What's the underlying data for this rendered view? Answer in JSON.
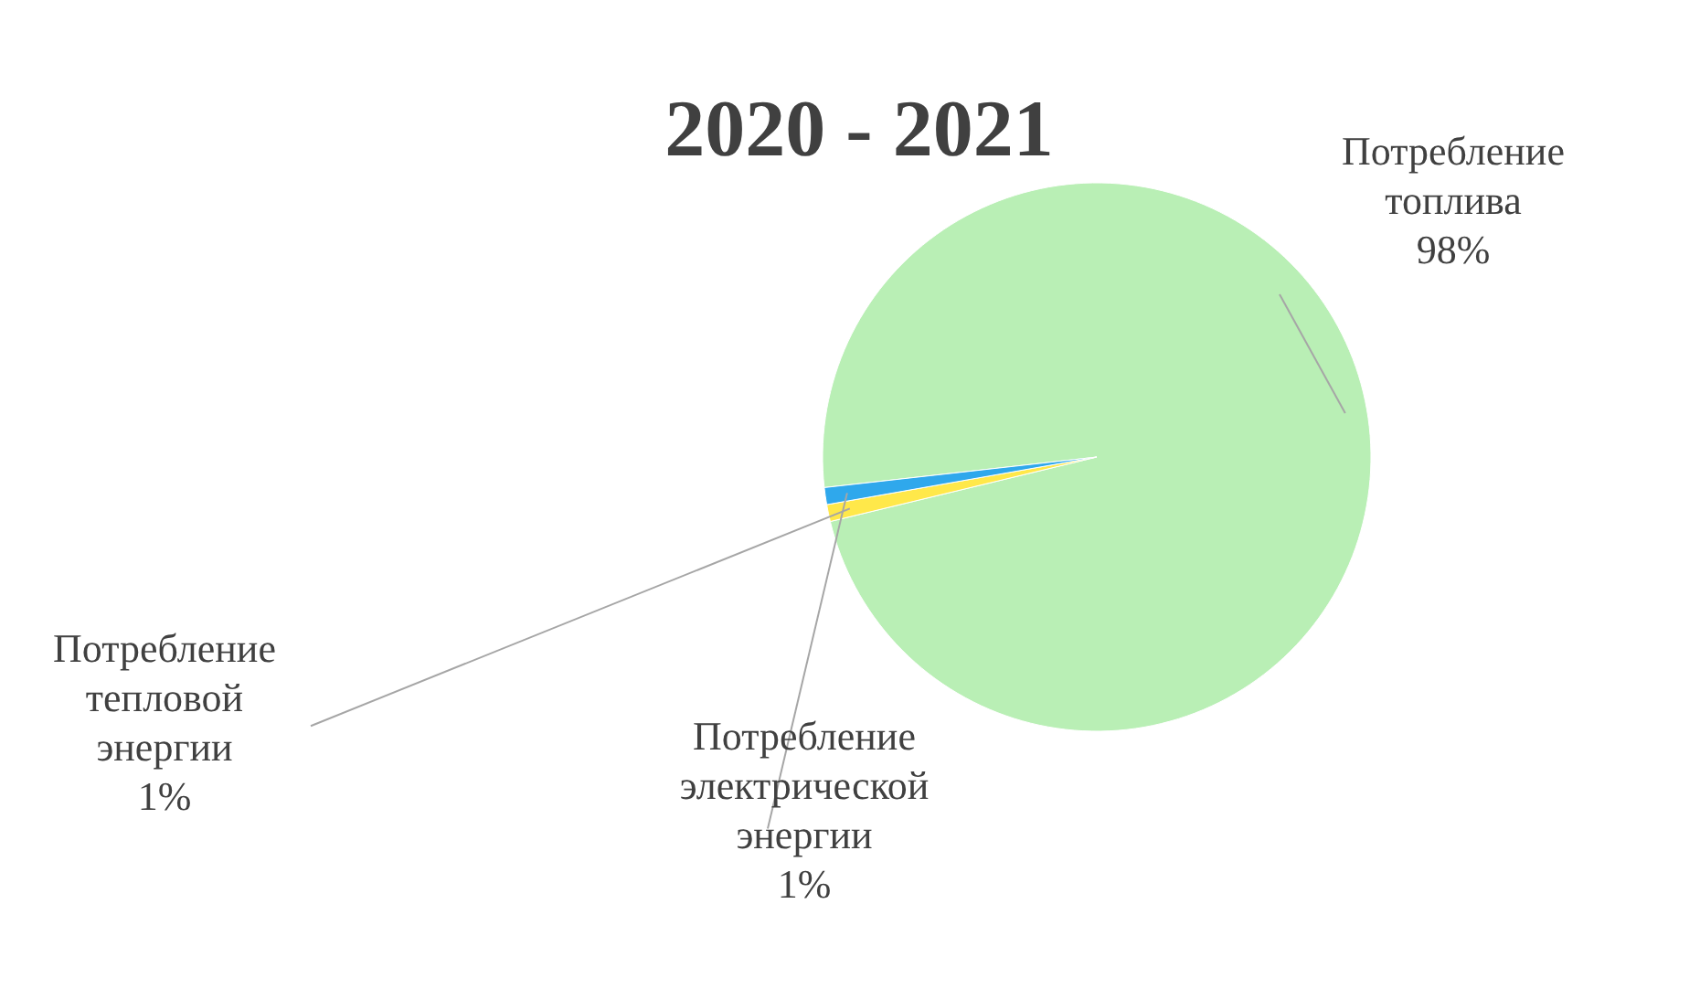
{
  "chart_data": {
    "type": "pie",
    "title": "2020 - 2021",
    "categories": [
      "Потребление топлива",
      "Потребление тепловой энергии",
      "Потребление электрической энергии"
    ],
    "values": [
      98,
      1,
      1
    ],
    "colors": [
      "#b9efb5",
      "#ffe84a",
      "#2fa8ec"
    ],
    "value_labels": [
      "98%",
      "1%",
      "1%"
    ],
    "legend": false
  }
}
